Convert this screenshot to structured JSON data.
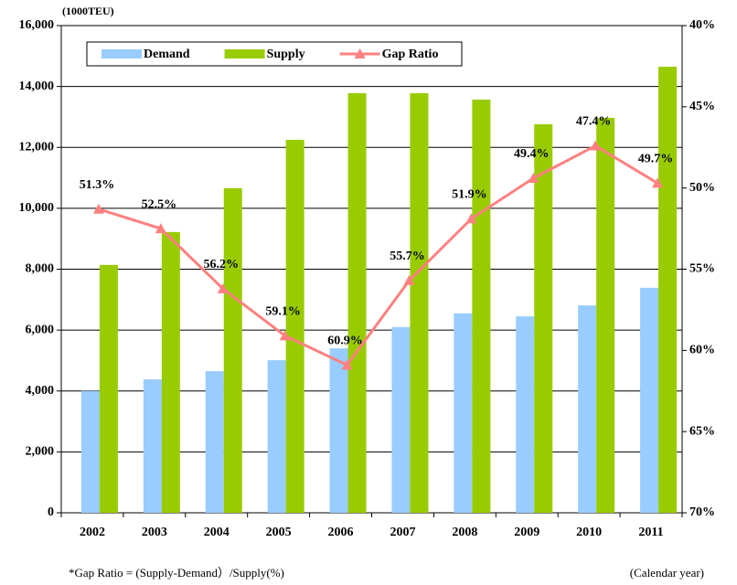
{
  "chart_data": {
    "type": "bar",
    "unit_label": "(1000TEU)",
    "footnote": "*Gap Ratio = (Supply-Demand）/Supply(%)",
    "x_note": "(Calendar year)",
    "categories": [
      "2002",
      "2003",
      "2004",
      "2005",
      "2006",
      "2007",
      "2008",
      "2009",
      "2010",
      "2011"
    ],
    "series": [
      {
        "name": "Demand",
        "type": "bar",
        "color": "#99ccff",
        "values": [
          4000,
          4380,
          4650,
          5010,
          5400,
          6100,
          6550,
          6450,
          6810,
          7390
        ]
      },
      {
        "name": "Supply",
        "type": "bar",
        "color": "#99cc00",
        "values": [
          8140,
          9220,
          10660,
          12250,
          13780,
          13780,
          13570,
          12760,
          12970,
          14650
        ]
      },
      {
        "name": "Gap Ratio",
        "type": "line",
        "axis": "y2",
        "color": "#ff8080",
        "values": [
          51.3,
          52.5,
          56.2,
          59.1,
          60.9,
          55.7,
          51.9,
          49.4,
          47.4,
          49.7
        ],
        "value_labels": [
          "51.3%",
          "52.5%",
          "56.2%",
          "59.1%",
          "60.9%",
          "55.7%",
          "51.9%",
          "49.4%",
          "47.4%",
          "49.7%"
        ]
      }
    ],
    "ylim": [
      0,
      16000
    ],
    "yticks": [
      0,
      {
        "value": 2000,
        "label": "2,000"
      },
      {
        "value": 4000,
        "label": "4,000"
      },
      {
        "value": 6000,
        "label": "6,000"
      },
      {
        "value": 8000,
        "label": "8,000"
      },
      {
        "value": 10000,
        "label": "10,000"
      },
      {
        "value": 12000,
        "label": "12,000"
      },
      {
        "value": 14000,
        "label": "14,000"
      },
      {
        "value": 16000,
        "label": "16,000"
      }
    ],
    "y2lim": [
      70,
      40
    ],
    "y2ticks": [
      {
        "value": 70,
        "label": "70%"
      },
      {
        "value": 65,
        "label": "65%"
      },
      {
        "value": 60,
        "label": "60%"
      },
      {
        "value": 55,
        "label": "55%"
      },
      {
        "value": 50,
        "label": "50%"
      },
      {
        "value": 45,
        "label": "45%"
      },
      {
        "value": 40,
        "label": "40%"
      }
    ],
    "grid": true
  }
}
